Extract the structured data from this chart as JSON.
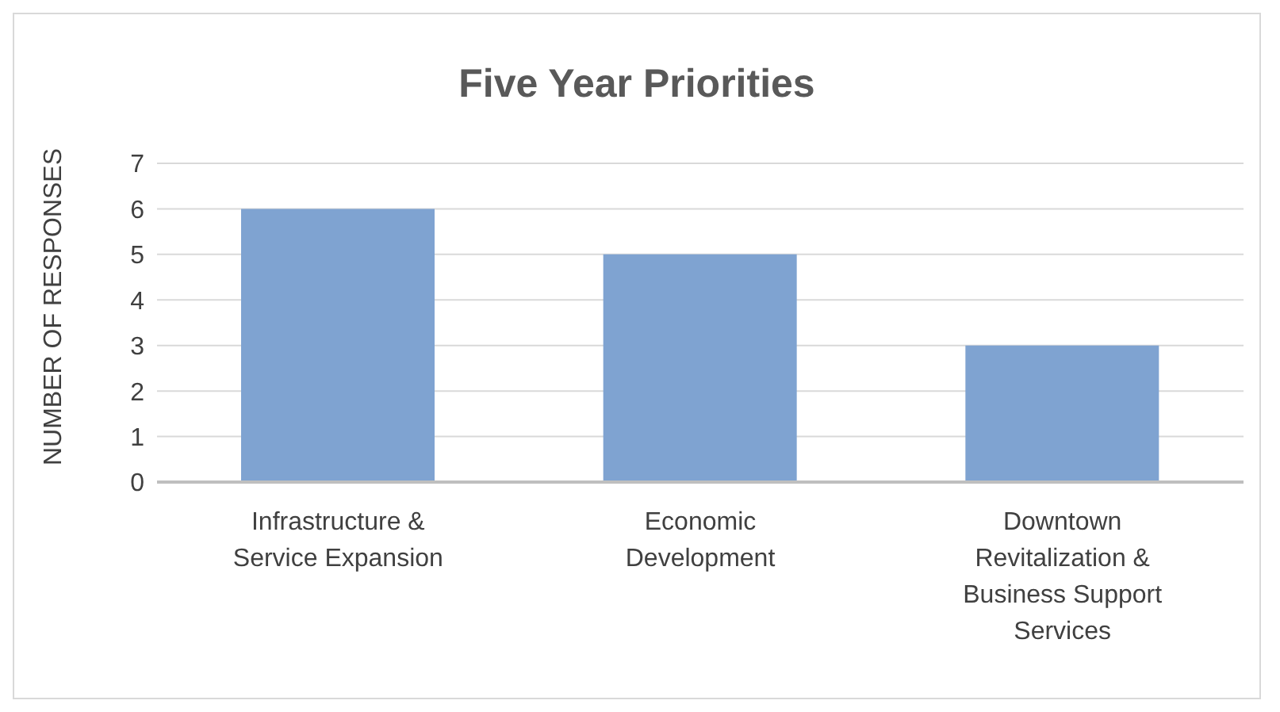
{
  "chart_data": {
    "type": "bar",
    "title": "Five Year Priorities",
    "ylabel": "NUMBER OF RESPONSES",
    "categories": [
      "Infrastructure & Service Expansion",
      "Economic Development",
      "Downtown Revitalization & Business Support Services"
    ],
    "values": [
      6,
      5,
      3
    ],
    "color": "#7fa3d1",
    "ylim": [
      0,
      7
    ],
    "yticks": [
      0,
      1,
      2,
      3,
      4,
      5,
      6,
      7
    ],
    "grid": "y",
    "legend": false
  }
}
